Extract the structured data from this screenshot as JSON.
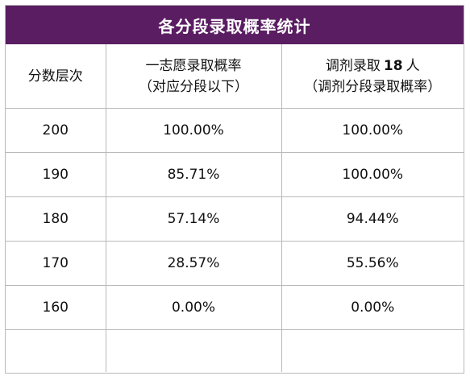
{
  "title": "各分段录取概率统计",
  "headers": {
    "col1": "分数层次",
    "col2_line1": "一志愿录取概率",
    "col2_line2": "（对应分段以下）",
    "col3_prefix": "调剂录取",
    "col3_number": "18",
    "col3_suffix": "人",
    "col3_line2": "（调剂分段录取概率）"
  },
  "rows": [
    {
      "score": "200",
      "first_choice": "100.00%",
      "adjusted": "100.00%"
    },
    {
      "score": "190",
      "first_choice": "85.71%",
      "adjusted": "100.00%"
    },
    {
      "score": "180",
      "first_choice": "57.14%",
      "adjusted": "94.44%"
    },
    {
      "score": "170",
      "first_choice": "28.57%",
      "adjusted": "55.56%"
    },
    {
      "score": "160",
      "first_choice": "0.00%",
      "adjusted": "0.00%"
    }
  ],
  "colors": {
    "banner": "#5a1d62",
    "border": "#b9b9b9"
  }
}
